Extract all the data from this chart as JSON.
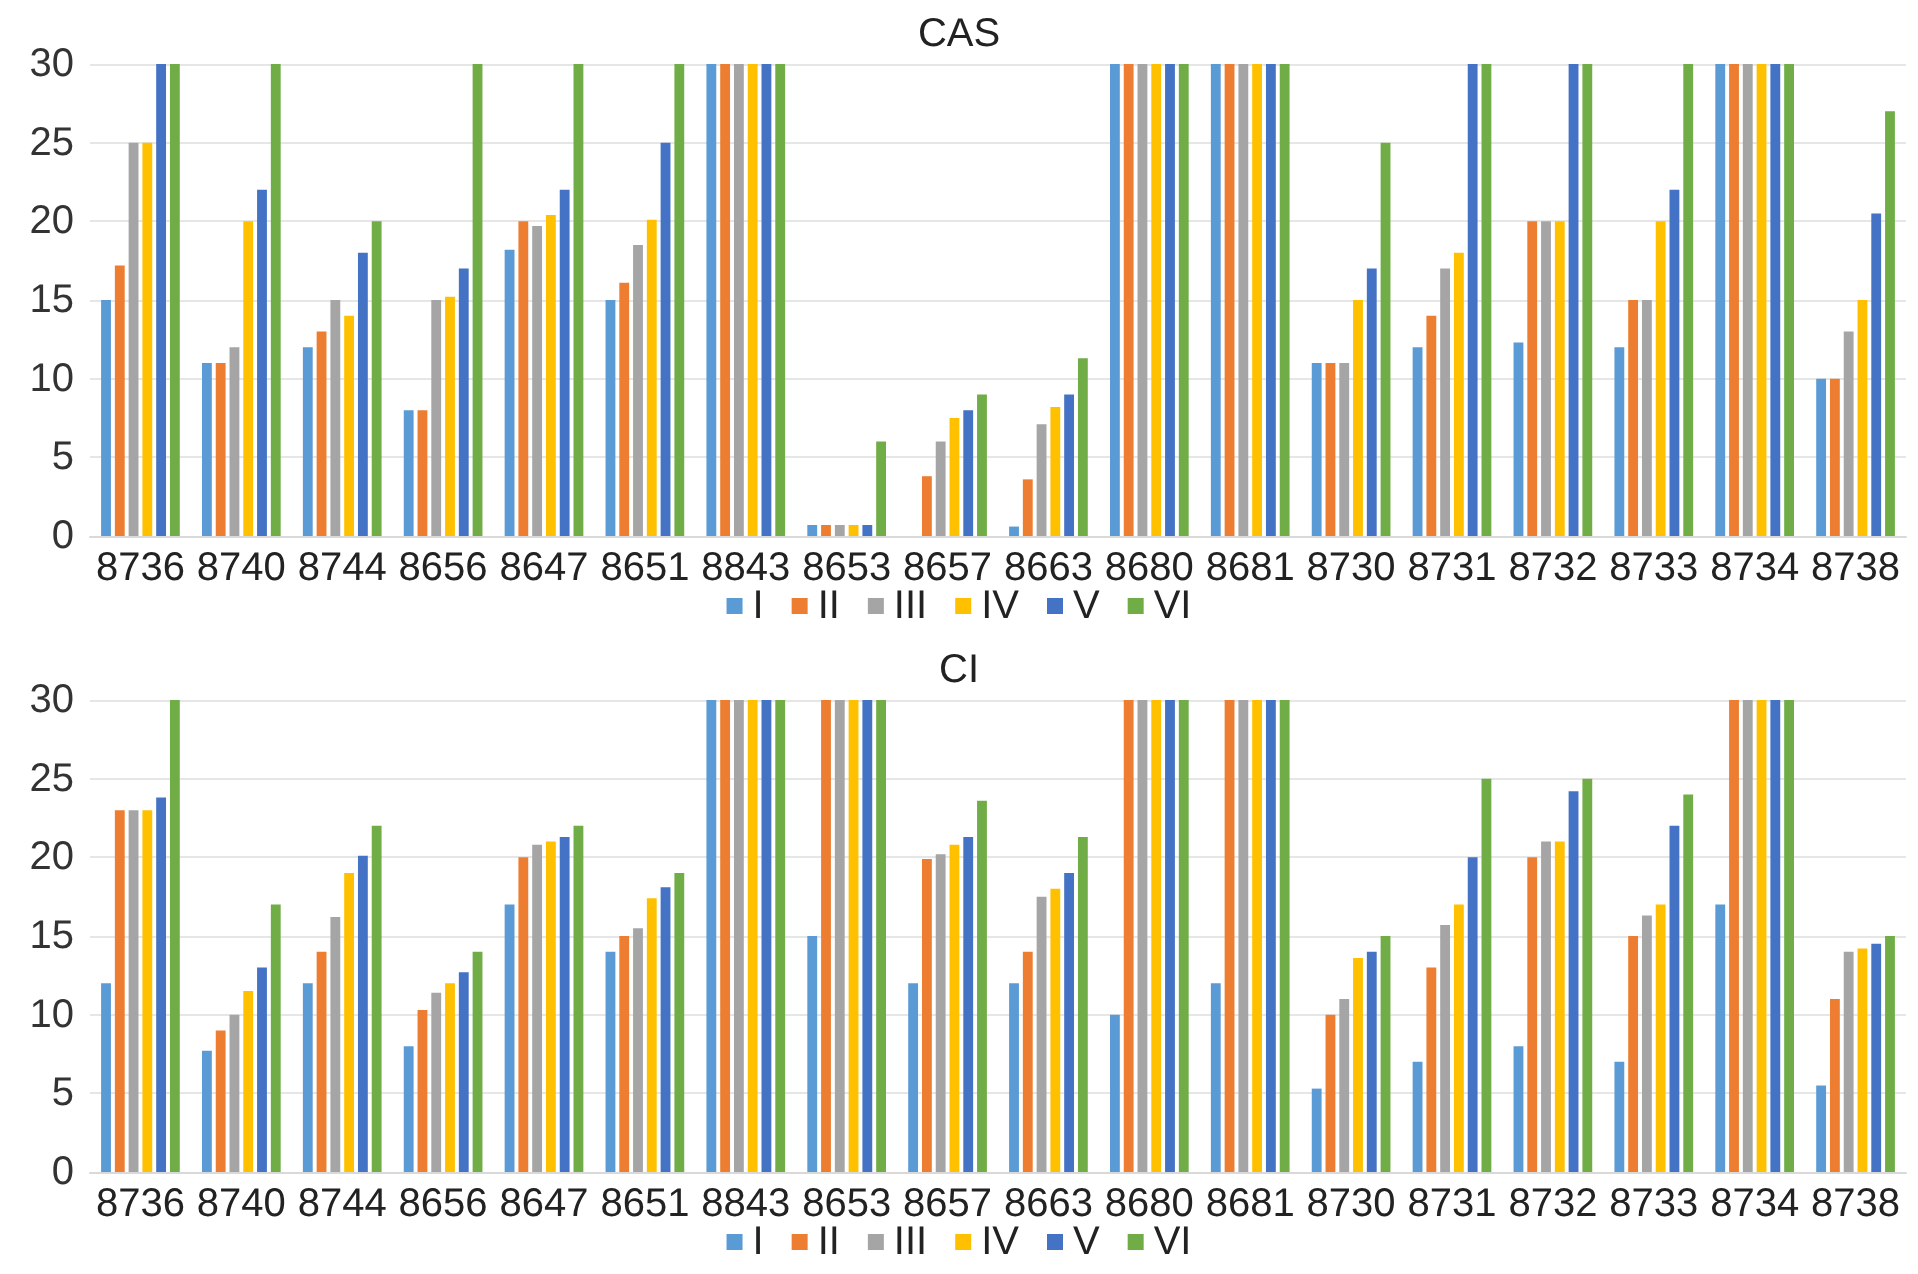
{
  "chart_data": [
    {
      "type": "bar",
      "title": "CAS",
      "categories": [
        "8736",
        "8740",
        "8744",
        "8656",
        "8647",
        "8651",
        "8843",
        "8653",
        "8657",
        "8663",
        "8680",
        "8681",
        "8730",
        "8731",
        "8732",
        "8733",
        "8734",
        "8738"
      ],
      "ylim": [
        0,
        30
      ],
      "yticks": [
        0,
        5,
        10,
        15,
        20,
        25,
        30
      ],
      "grid": "y",
      "legend": "bottom",
      "series": [
        {
          "name": "I",
          "color": "#5b9bd5",
          "values": [
            15,
            11,
            12,
            8,
            18.2,
            15,
            30,
            0.7,
            0,
            0.6,
            30,
            30,
            11,
            12,
            12.3,
            12,
            30,
            10
          ]
        },
        {
          "name": "II",
          "color": "#ed7d31",
          "values": [
            17.2,
            11,
            13,
            8,
            20,
            16.1,
            30,
            0.7,
            3.8,
            3.6,
            30,
            30,
            11,
            14,
            20,
            15,
            30,
            10
          ]
        },
        {
          "name": "III",
          "color": "#a5a5a5",
          "values": [
            25,
            12,
            15,
            15,
            19.7,
            18.5,
            30,
            0.7,
            6,
            7.1,
            30,
            30,
            11,
            17,
            20,
            15,
            30,
            13
          ]
        },
        {
          "name": "IV",
          "color": "#ffc000",
          "values": [
            25,
            20,
            14,
            15.2,
            20.4,
            20.1,
            30,
            0.7,
            7.5,
            8.2,
            30,
            30,
            15,
            18,
            20,
            20,
            30,
            15
          ]
        },
        {
          "name": "V",
          "color": "#4472c4",
          "values": [
            30,
            22,
            18,
            17,
            22,
            25,
            30,
            0.7,
            8,
            9,
            30,
            30,
            17,
            30,
            30,
            22,
            30,
            20.5
          ]
        },
        {
          "name": "VI",
          "color": "#70ad47",
          "values": [
            30,
            30,
            20,
            30,
            30,
            30,
            30,
            6,
            9,
            11.3,
            30,
            30,
            25,
            30,
            30,
            30,
            30,
            27
          ]
        }
      ]
    },
    {
      "type": "bar",
      "title": "CI",
      "categories": [
        "8736",
        "8740",
        "8744",
        "8656",
        "8647",
        "8651",
        "8843",
        "8653",
        "8657",
        "8663",
        "8680",
        "8681",
        "8730",
        "8731",
        "8732",
        "8733",
        "8734",
        "8738"
      ],
      "ylim": [
        0,
        30
      ],
      "yticks": [
        0,
        5,
        10,
        15,
        20,
        25,
        30
      ],
      "grid": "y",
      "legend": "bottom",
      "series": [
        {
          "name": "I",
          "color": "#5b9bd5",
          "values": [
            12,
            7.7,
            12,
            8,
            17,
            14,
            30,
            15,
            12,
            12,
            10,
            12,
            5.3,
            7,
            8,
            7,
            17,
            5.5
          ]
        },
        {
          "name": "II",
          "color": "#ed7d31",
          "values": [
            23,
            9,
            14,
            10.3,
            20,
            15,
            30,
            30,
            19.9,
            14,
            30,
            30,
            10,
            13,
            20,
            15,
            30,
            11
          ]
        },
        {
          "name": "III",
          "color": "#a5a5a5",
          "values": [
            23,
            10,
            16.2,
            11.4,
            20.8,
            15.5,
            30,
            30,
            20.2,
            17.5,
            30,
            30,
            11,
            15.7,
            21,
            16.3,
            30,
            14
          ]
        },
        {
          "name": "IV",
          "color": "#ffc000",
          "values": [
            23,
            11.5,
            19,
            12,
            21,
            17.4,
            30,
            30,
            20.8,
            18,
            30,
            30,
            13.6,
            17,
            21,
            17,
            30,
            14.2
          ]
        },
        {
          "name": "V",
          "color": "#4472c4",
          "values": [
            23.8,
            13,
            20.1,
            12.7,
            21.3,
            18.1,
            30,
            30,
            21.3,
            19,
            30,
            30,
            14,
            20,
            24.2,
            22,
            30,
            14.5
          ]
        },
        {
          "name": "VI",
          "color": "#70ad47",
          "values": [
            30,
            17,
            22,
            14,
            22,
            19,
            30,
            30,
            23.6,
            21.3,
            30,
            30,
            15,
            25,
            25,
            24,
            30,
            15
          ]
        }
      ]
    }
  ]
}
